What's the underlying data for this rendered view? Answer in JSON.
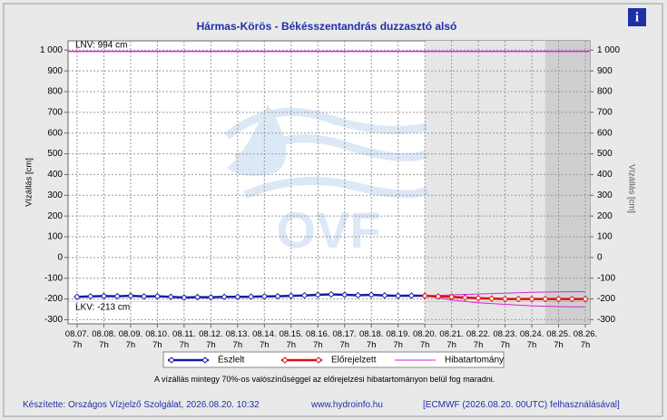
{
  "chart_data": {
    "type": "line",
    "title": "Hármas-Körös - Békésszentandrás duzzasztó alsó",
    "y_label": "Vízállás [cm]",
    "categories": [
      "08.07.\n7h",
      null,
      "08.08.\n7h",
      null,
      "08.09.\n7h",
      null,
      "08.10.\n7h",
      null,
      "08.11.\n7h",
      null,
      "08.12.\n7h",
      null,
      "08.13.\n7h",
      null,
      "08.14.\n7h",
      null,
      "08.15.\n7h",
      null,
      "08.16.\n7h",
      null,
      "08.17.\n7h",
      null,
      "08.18.\n7h",
      null,
      "08.19.\n7h",
      null,
      "08.20.\n7h",
      null,
      "08.21.\n7h",
      null,
      "08.22.\n7h",
      null,
      "08.23.\n7h",
      null,
      "08.24.\n7h",
      null,
      "08.25.\n7h",
      null,
      "08.26.\n7h"
    ],
    "series": [
      {
        "name": "Észlelt",
        "color": "#1a1aa8",
        "values": [
          -190,
          -188,
          -186,
          -187,
          -185,
          -188,
          -187,
          -190,
          -193,
          -191,
          -192,
          -190,
          -190,
          -189,
          -188,
          -187,
          -185,
          -183,
          -180,
          -178,
          -180,
          -182,
          -180,
          -183,
          -185,
          -184,
          -185,
          null,
          null,
          null,
          null,
          null,
          null,
          null,
          null,
          null,
          null,
          null,
          null
        ]
      },
      {
        "name": "Előrejelzett",
        "color": "#dd1111",
        "values": [
          null,
          null,
          null,
          null,
          null,
          null,
          null,
          null,
          null,
          null,
          null,
          null,
          null,
          null,
          null,
          null,
          null,
          null,
          null,
          null,
          null,
          null,
          null,
          null,
          null,
          null,
          -185,
          -188,
          -190,
          -193,
          -196,
          -198,
          -200,
          -200,
          -200,
          -200,
          -200,
          -200,
          -200
        ]
      }
    ],
    "error_band": {
      "name": "Hibatartomány",
      "color": "#dd22dd",
      "upper": [
        null,
        null,
        null,
        null,
        null,
        null,
        null,
        null,
        null,
        null,
        null,
        null,
        null,
        null,
        null,
        null,
        null,
        null,
        null,
        null,
        null,
        null,
        null,
        null,
        null,
        null,
        -185,
        -183,
        -180,
        -178,
        -176,
        -174,
        -172,
        -170,
        -168,
        -167,
        -166,
        -165,
        -165
      ],
      "lower": [
        null,
        null,
        null,
        null,
        null,
        null,
        null,
        null,
        null,
        null,
        null,
        null,
        null,
        null,
        null,
        null,
        null,
        null,
        null,
        null,
        null,
        null,
        null,
        null,
        null,
        null,
        -185,
        -195,
        -205,
        -212,
        -218,
        -222,
        -226,
        -230,
        -233,
        -235,
        -237,
        -238,
        -238
      ]
    },
    "lnv": {
      "value": 994,
      "label": "LNV: 994 cm"
    },
    "lkv": {
      "value": -213,
      "label": "LKV: -213 cm"
    },
    "ylim": [
      -320,
      1045
    ],
    "yticks": [
      -300,
      -200,
      -100,
      0,
      100,
      200,
      300,
      400,
      500,
      600,
      700,
      800,
      900,
      {
        "value": 1000,
        "label": "1 000"
      }
    ],
    "grid": true,
    "watermark": "OVF",
    "note": "A vízállás mintegy 70%-os valószínűséggel az előrejelzési hibatartományon belül fog maradni."
  },
  "footer": {
    "author": "Készítette: Országos Vízjelző Szolgálat, 2026.08.20. 10:32",
    "site": "www.hydroinfo.hu",
    "source": "[ECMWF (2026.08.20. 00UTC) felhasználásával]"
  },
  "info_icon": "i"
}
